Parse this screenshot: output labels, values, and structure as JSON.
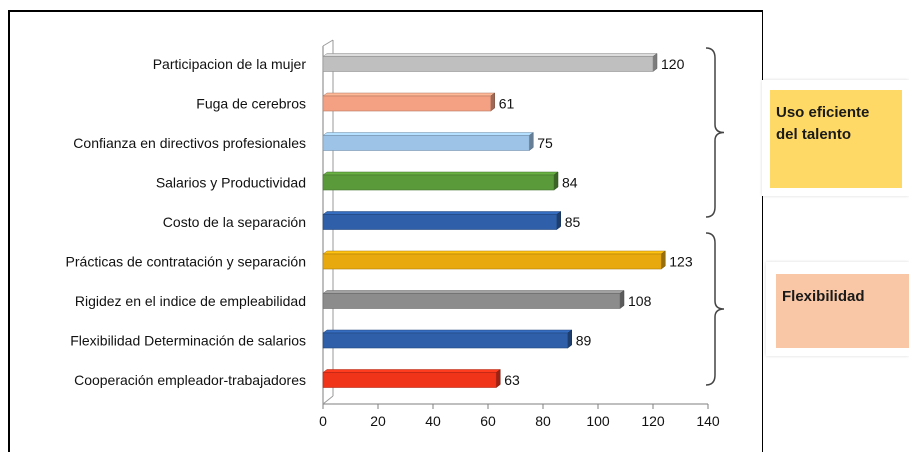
{
  "chart_data": {
    "type": "bar",
    "orientation": "horizontal",
    "categories": [
      "Participacion de la mujer",
      "Fuga de cerebros",
      "Confianza en directivos profesionales",
      "Salarios y Productividad",
      "Costo de la separación",
      "Prácticas de contratación y separación",
      "Rigidez en el indice de empleabilidad",
      "Flexibilidad Determinación de salarios",
      "Cooperación empleador-trabajadores"
    ],
    "values": [
      120,
      61,
      75,
      84,
      85,
      123,
      108,
      89,
      63
    ],
    "colors": [
      "#bfbfbf",
      "#f4a183",
      "#9dc3e6",
      "#5b9a3a",
      "#2e5fa8",
      "#e8a90e",
      "#8c8c8c",
      "#2e5fa8",
      "#f0341a"
    ],
    "xlim": [
      0,
      140
    ],
    "xticks": [
      0,
      20,
      40,
      60,
      80,
      100,
      120,
      140
    ],
    "grid": false,
    "groups": [
      {
        "label": "Uso eficiente del talento",
        "color": "#ffd966",
        "categories": [
          0,
          1,
          2,
          3,
          4
        ]
      },
      {
        "label": "Flexibilidad",
        "color": "#f9c7a5",
        "categories": [
          5,
          6,
          7,
          8
        ]
      }
    ]
  },
  "legend": {
    "uso_line1": "Uso eficiente",
    "uso_line2": "del talento",
    "flex": "Flexibilidad"
  }
}
